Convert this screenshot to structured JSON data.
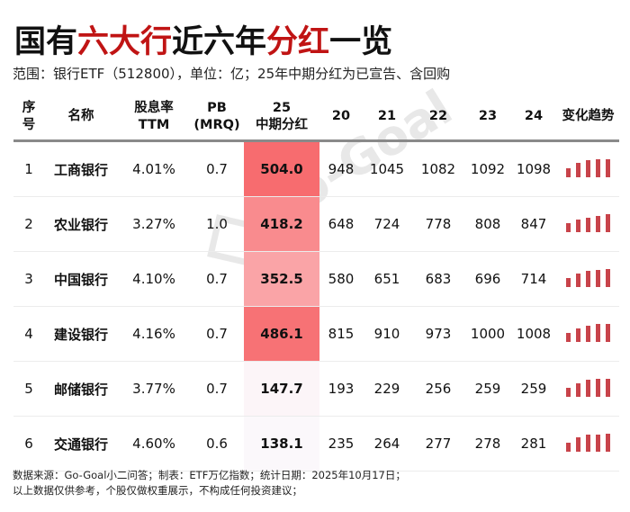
{
  "header": {
    "title_parts": [
      {
        "text": "国有",
        "color": "#111111"
      },
      {
        "text": "六大行",
        "color": "#c01414"
      },
      {
        "text": "近六年",
        "color": "#111111"
      },
      {
        "text": "分红",
        "color": "#c01414"
      },
      {
        "text": "一览",
        "color": "#111111"
      }
    ],
    "subtitle": "范围：银行ETF（512800），单位：亿；25年中期分红为已宣告、含回购"
  },
  "table": {
    "columns": {
      "idx": [
        "序",
        "号"
      ],
      "name": "名称",
      "yield": [
        "股息率",
        "TTM"
      ],
      "pb": [
        "PB",
        "(MRQ)"
      ],
      "div25": [
        "25",
        "中期分红"
      ],
      "y20": "20",
      "y21": "21",
      "y22": "22",
      "y23": "23",
      "y24": "24",
      "trend": "变化趋势"
    },
    "rows": [
      {
        "idx": "1",
        "name": "工商银行",
        "yield": "4.01%",
        "pb": "0.7",
        "div25": "504.0",
        "heat": "#f76c6f",
        "y20": "948",
        "y21": "1045",
        "y22": "1082",
        "y23": "1092",
        "y24": "1098",
        "spark": [
          948,
          1045,
          1082,
          1092,
          1098
        ]
      },
      {
        "idx": "2",
        "name": "农业银行",
        "yield": "3.27%",
        "pb": "1.0",
        "div25": "418.2",
        "heat": "#f98b8e",
        "y20": "648",
        "y21": "724",
        "y22": "778",
        "y23": "808",
        "y24": "847",
        "spark": [
          648,
          724,
          778,
          808,
          847
        ]
      },
      {
        "idx": "3",
        "name": "中国银行",
        "yield": "4.10%",
        "pb": "0.7",
        "div25": "352.5",
        "heat": "#faa4a7",
        "y20": "580",
        "y21": "651",
        "y22": "683",
        "y23": "696",
        "y24": "714",
        "spark": [
          580,
          651,
          683,
          696,
          714
        ]
      },
      {
        "idx": "4",
        "name": "建设银行",
        "yield": "4.16%",
        "pb": "0.7",
        "div25": "486.1",
        "heat": "#f77275",
        "y20": "815",
        "y21": "910",
        "y22": "973",
        "y23": "1000",
        "y24": "1008",
        "spark": [
          815,
          910,
          973,
          1000,
          1008
        ]
      },
      {
        "idx": "5",
        "name": "邮储银行",
        "yield": "3.77%",
        "pb": "0.7",
        "div25": "147.7",
        "heat": "#fcf5f8",
        "y20": "193",
        "y21": "229",
        "y22": "256",
        "y23": "259",
        "y24": "259",
        "spark": [
          193,
          229,
          256,
          259,
          259
        ]
      },
      {
        "idx": "6",
        "name": "交通银行",
        "yield": "4.60%",
        "pb": "0.6",
        "div25": "138.1",
        "heat": "#fbf8fb",
        "y20": "235",
        "y21": "264",
        "y22": "277",
        "y23": "278",
        "y24": "281",
        "spark": [
          235,
          264,
          277,
          278,
          281
        ]
      }
    ]
  },
  "watermark": "Go-Goal",
  "footer": {
    "line1": "数据来源：Go-Goal小二问答；制表：ETF万亿指数；统计日期：2025年10月17日；",
    "line2": "以上数据仅供参考，个股仅做权重展示，不构成任何投资建议；"
  },
  "colors": {
    "accent_red": "#c01414",
    "spark_bar": "#c8434a",
    "header_rule": "#8a8a8a"
  }
}
